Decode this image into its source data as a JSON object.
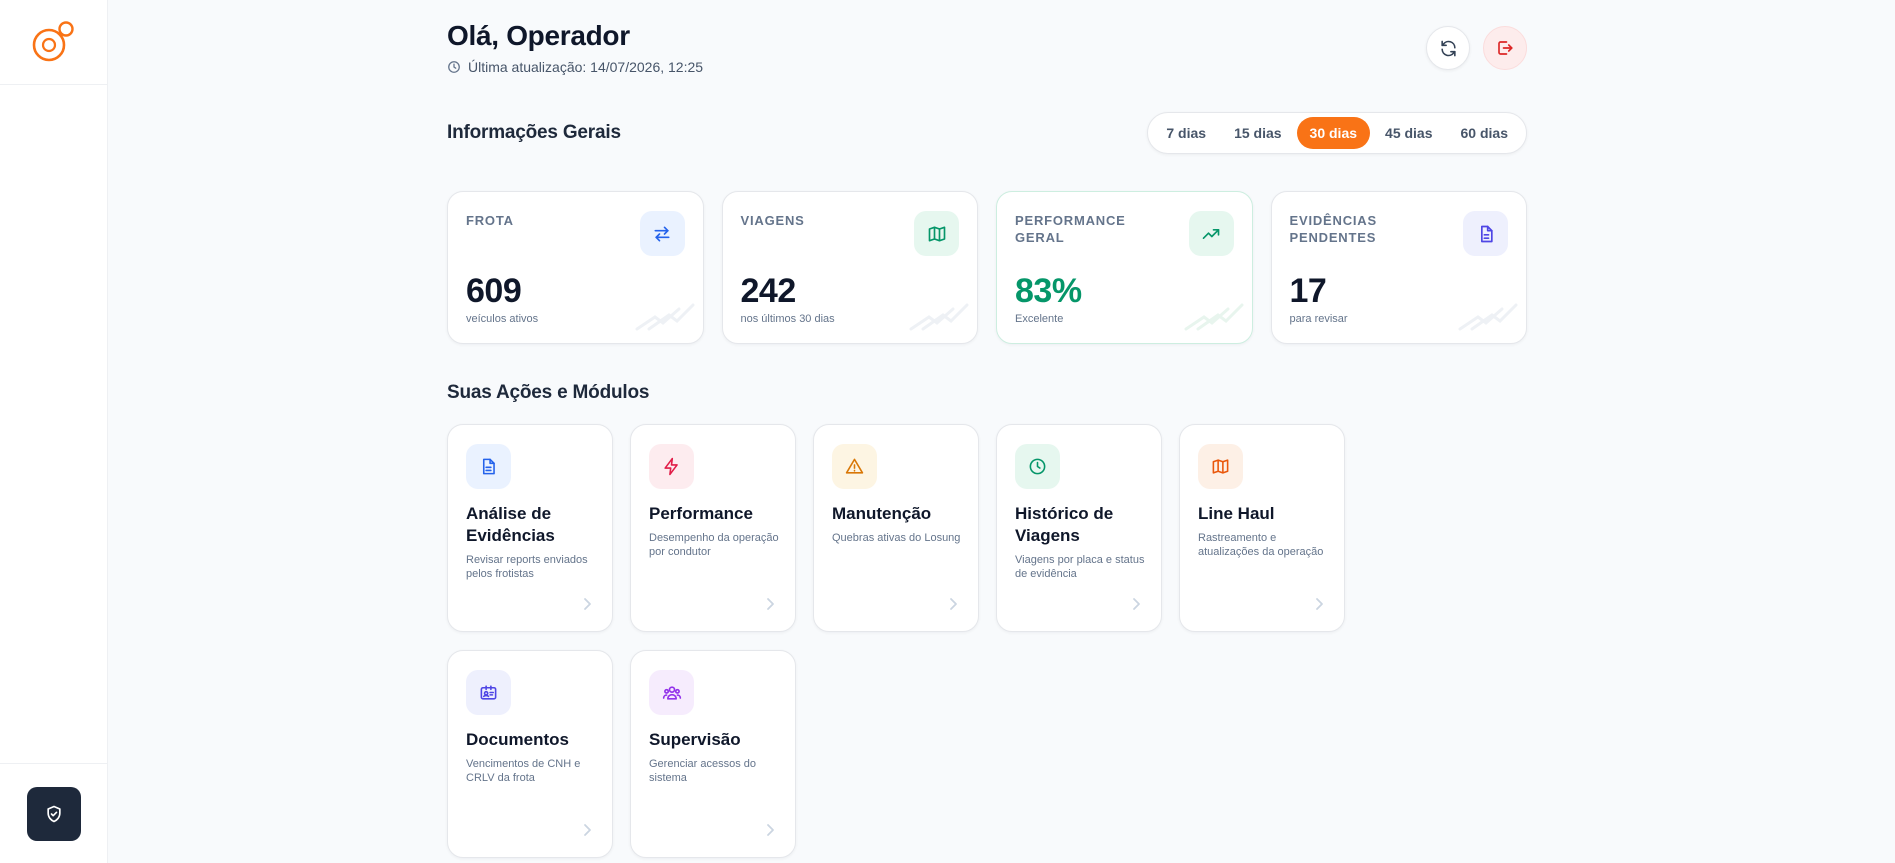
{
  "header": {
    "greeting": "Olá, Operador",
    "last_update": "Última atualização: 14/07/2026, 12:25"
  },
  "general": {
    "title": "Informações Gerais",
    "ranges": [
      "7 dias",
      "15 dias",
      "30 dias",
      "45 dias",
      "60 dias"
    ],
    "active_range": "30 dias"
  },
  "stats": [
    {
      "label": "FROTA",
      "value": "609",
      "sub": "veículos ativos",
      "icon": "arrows-exchange-icon",
      "icon_color": "#2563eb",
      "icon_bg": "#eaf2ff"
    },
    {
      "label": "VIAGENS",
      "value": "242",
      "sub": "nos últimos 30 dias",
      "icon": "map-icon",
      "icon_color": "#059669",
      "icon_bg": "#e6f7ef"
    },
    {
      "label": "PERFORMANCE GERAL",
      "value": "83%",
      "sub": "Excelente",
      "icon": "trending-up-icon",
      "icon_color": "#059669",
      "icon_bg": "#e6f7ef"
    },
    {
      "label": "EVIDÊNCIAS PENDENTES",
      "value": "17",
      "sub": "para revisar",
      "icon": "file-icon",
      "icon_color": "#4f46e5",
      "icon_bg": "#eef0fd"
    }
  ],
  "modules_section": {
    "title": "Suas Ações e Módulos"
  },
  "modules": [
    {
      "title": "Análise de Evidências",
      "desc": "Revisar reports enviados pelos frotistas",
      "icon": "document-icon",
      "icon_color": "#2563eb",
      "icon_bg": "#eaf2ff"
    },
    {
      "title": "Performance",
      "desc": "Desempenho da operação por condutor",
      "icon": "lightning-icon",
      "icon_color": "#e11d48",
      "icon_bg": "#fdecef"
    },
    {
      "title": "Manutenção",
      "desc": "Quebras ativas do Losung",
      "icon": "warning-icon",
      "icon_color": "#d97706",
      "icon_bg": "#fdf5e3"
    },
    {
      "title": "Histórico de Viagens",
      "desc": "Viagens por placa e status de evidência",
      "icon": "clock-icon",
      "icon_color": "#059669",
      "icon_bg": "#e6f7ef"
    },
    {
      "title": "Line Haul",
      "desc": "Rastreamento e atualizações da operação",
      "icon": "map-icon",
      "icon_color": "#ea580c",
      "icon_bg": "#fdf0e6"
    },
    {
      "title": "Documentos",
      "desc": "Vencimentos de CNH e CRLV da frota",
      "icon": "id-card-icon",
      "icon_color": "#4f46e5",
      "icon_bg": "#eef0fd"
    },
    {
      "title": "Supervisão",
      "desc": "Gerenciar acessos do sistema",
      "icon": "users-icon",
      "icon_color": "#9333ea",
      "icon_bg": "#f6ecfd"
    }
  ],
  "colors": {
    "accent": "#f97316",
    "sidebar_button": "#1e293b",
    "logout": "#dc2626"
  }
}
